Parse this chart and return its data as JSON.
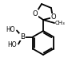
{
  "bg_color": "#ffffff",
  "bond_color": "#000000",
  "lw": 1.3,
  "fig_width": 0.9,
  "fig_height": 0.92,
  "dpi": 100,
  "xlim": [
    0,
    90
  ],
  "ylim": [
    0,
    92
  ]
}
